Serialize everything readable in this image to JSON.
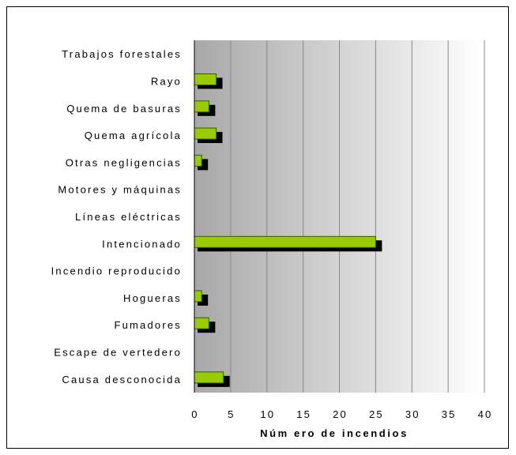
{
  "chart_data": {
    "type": "bar",
    "orientation": "horizontal",
    "categories": [
      "Trabajos forestales",
      "Rayo",
      "Quema de basuras",
      "Quema agrícola",
      "Otras negligencias",
      "Motores y máquinas",
      "Líneas eléctricas",
      "Intencionado",
      "Incendio reproducido",
      "Hogueras",
      "Fumadores",
      "Escape de vertedero",
      "Causa desconocida"
    ],
    "values": [
      0,
      3,
      2,
      3,
      1,
      0,
      0,
      25,
      0,
      1,
      2,
      0,
      4
    ],
    "xlabel": "Núm ero de incendios",
    "ylabel": "",
    "title": "",
    "xlim": [
      0,
      40
    ],
    "xticks": [
      0,
      5,
      10,
      15,
      20,
      25,
      30,
      35,
      40
    ],
    "grid": true,
    "legend": "none",
    "colors": {
      "bar_fill": "#99CC00",
      "bar_shadow": "#000000",
      "bar_border": "#2a6000",
      "plot_gradient_dark": "#a8a8a8",
      "plot_gradient_light": "#ffffff",
      "gridline": "#888888"
    }
  }
}
